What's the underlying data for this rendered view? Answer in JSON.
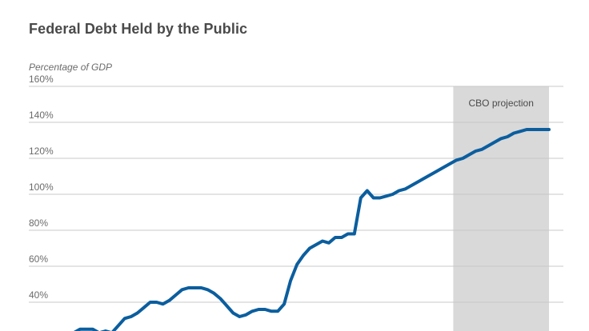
{
  "chart_data": {
    "type": "line",
    "title": "Federal Debt Held by the Public",
    "ylabel": "Percentage of GDP",
    "ylim": [
      0,
      160
    ],
    "yticks": [
      {
        "value": 40,
        "label": "40%"
      },
      {
        "value": 60,
        "label": "60%"
      },
      {
        "value": 80,
        "label": "80%"
      },
      {
        "value": 100,
        "label": "100%"
      },
      {
        "value": 120,
        "label": "120%"
      },
      {
        "value": 140,
        "label": "140%"
      },
      {
        "value": 160,
        "label": "160%"
      }
    ],
    "xlim": [
      1900,
      2049
    ],
    "grid": true,
    "projection": {
      "label": "CBO projection",
      "start": 2019,
      "end": 2049
    },
    "series": [
      {
        "color": "#0b5e9e",
        "x": [
          1900,
          1902,
          1904,
          1906,
          1908,
          1910,
          1912,
          1914,
          1916,
          1918,
          1920,
          1922,
          1924,
          1926,
          1928,
          1930,
          1932,
          1934,
          1936,
          1938,
          1940,
          1942,
          1944,
          1946,
          1948,
          1950,
          1952,
          1954,
          1956,
          1958,
          1960,
          1962,
          1964,
          1966,
          1968,
          1970,
          1972,
          1974,
          1976,
          1978,
          1980,
          1982,
          1984,
          1986,
          1988,
          1990,
          1992,
          1994,
          1996,
          1998,
          2000,
          2002,
          2004,
          2006,
          2008,
          2010,
          2012,
          2014,
          2016,
          2018,
          2020,
          2022,
          2024,
          2026,
          2028,
          2030,
          2032,
          2034,
          2036,
          2038,
          2040,
          2042,
          2044,
          2046,
          2048,
          2049
        ],
        "y": [
          23,
          25,
          25,
          25,
          23,
          24,
          23,
          27,
          31,
          32,
          34,
          37,
          40,
          40,
          39,
          41,
          44,
          47,
          48,
          48,
          48,
          47,
          45,
          42,
          38,
          34,
          32,
          33,
          35,
          36,
          36,
          35,
          35,
          39,
          52,
          61,
          66,
          70,
          72,
          74,
          73,
          76,
          76,
          78,
          78,
          98,
          102,
          98,
          98,
          99,
          100,
          102,
          103,
          105,
          107,
          109,
          111,
          113,
          115,
          117,
          119,
          120,
          122,
          124,
          125,
          127,
          129,
          131,
          132,
          134,
          135,
          136,
          136,
          136,
          136,
          136
        ]
      }
    ]
  }
}
